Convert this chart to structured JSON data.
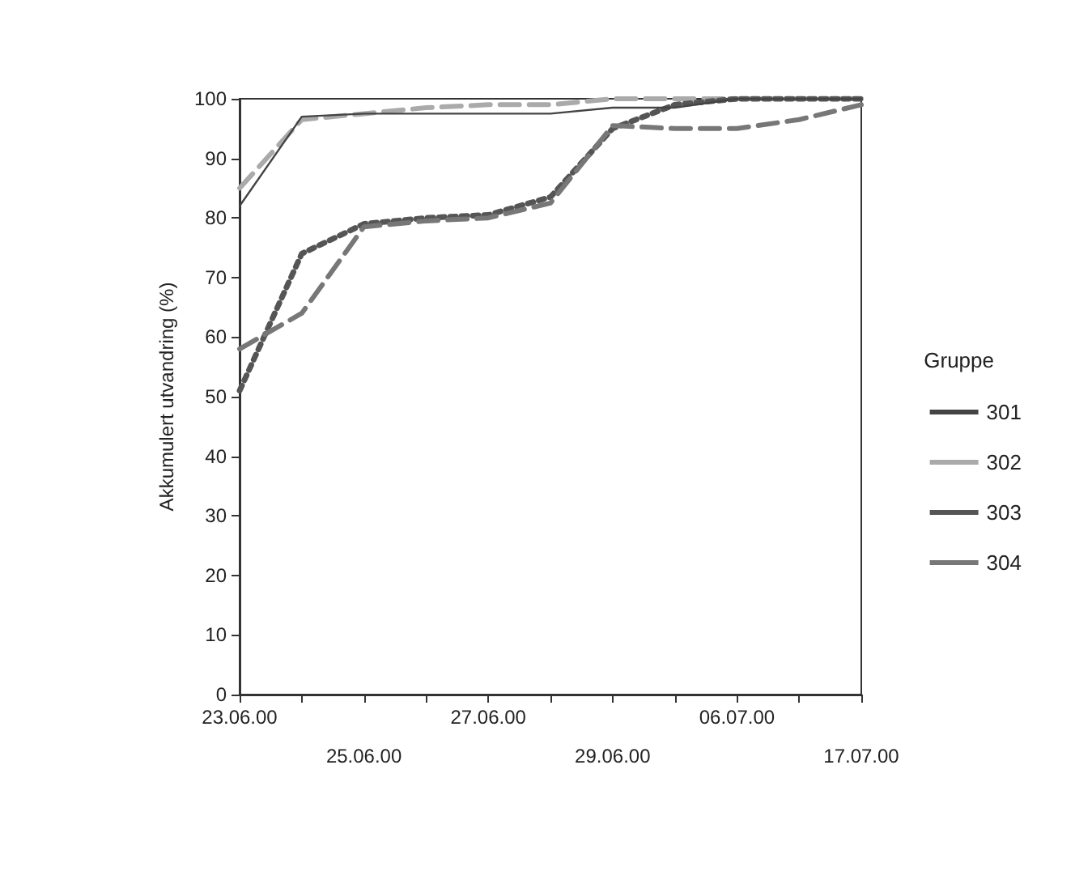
{
  "chart_data": {
    "type": "line",
    "ylabel": "Akkumulert utvandring (%)",
    "legend_title": "Gruppe",
    "legend": "right",
    "grid": false,
    "marker": "none",
    "categories": [
      "23.06.00",
      null,
      "25.06.00",
      null,
      "27.06.00",
      null,
      "29.06.00",
      null,
      "06.07.00",
      null,
      "17.07.00"
    ],
    "ylim": [
      0,
      100
    ],
    "yticks": [
      0,
      10,
      20,
      30,
      40,
      50,
      60,
      70,
      80,
      90,
      100
    ],
    "series": [
      {
        "name": "301",
        "color": "#444444",
        "line_style": "solid",
        "values": [
          82,
          97,
          97.5,
          97.5,
          97.5,
          97.5,
          98.5,
          98.5,
          100,
          100,
          100
        ]
      },
      {
        "name": "302",
        "color": "#aaaaaa",
        "line_style": "dashed",
        "values": [
          85,
          96.5,
          97.5,
          98.5,
          99,
          99,
          100,
          100,
          100,
          100,
          100
        ]
      },
      {
        "name": "303",
        "color": "#555555",
        "line_style": "dotted",
        "values": [
          51,
          74,
          79,
          80,
          80.5,
          83.5,
          95,
          99,
          100,
          100,
          100
        ]
      },
      {
        "name": "304",
        "color": "#777777",
        "line_style": "dashed",
        "values": [
          58,
          64,
          78.5,
          79.5,
          80,
          82.5,
          95.5,
          95,
          95,
          96.5,
          99
        ]
      }
    ]
  }
}
